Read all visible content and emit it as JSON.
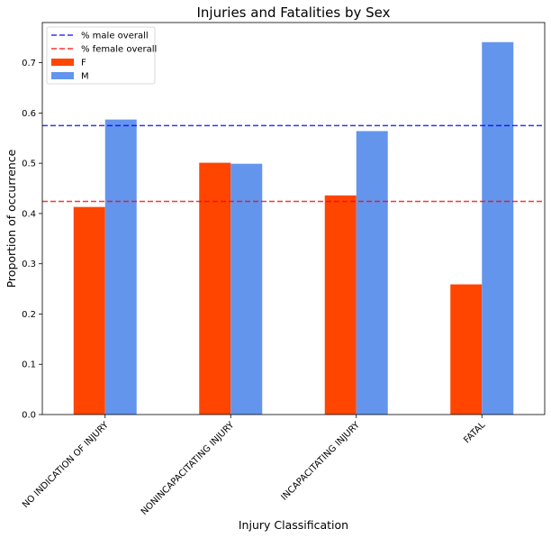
{
  "chart_data": {
    "type": "bar",
    "title": "Injuries and Fatalities by Sex",
    "xlabel": "Injury Classification",
    "ylabel": "Proportion of occurrence",
    "categories": [
      "NO INDICATION OF INJURY",
      "NONINCAPACITATING INJURY",
      "INCAPACITATING INJURY",
      "FATAL"
    ],
    "series": [
      {
        "name": "F",
        "color": "#ff4500",
        "values": [
          0.413,
          0.501,
          0.436,
          0.259
        ]
      },
      {
        "name": "M",
        "color": "#6495ed",
        "values": [
          0.587,
          0.499,
          0.564,
          0.741
        ]
      }
    ],
    "reference_lines": [
      {
        "name": "% male overall",
        "value": 0.575,
        "color": "#0000ff",
        "style": "dashed"
      },
      {
        "name": "% female overall",
        "value": 0.424,
        "color": "#ff0000",
        "style": "dashed"
      }
    ],
    "ylim": [
      0,
      0.78
    ],
    "yticks": [
      0.0,
      0.1,
      0.2,
      0.3,
      0.4,
      0.5,
      0.6,
      0.7
    ],
    "legend_position": "top-left",
    "grid": false
  }
}
